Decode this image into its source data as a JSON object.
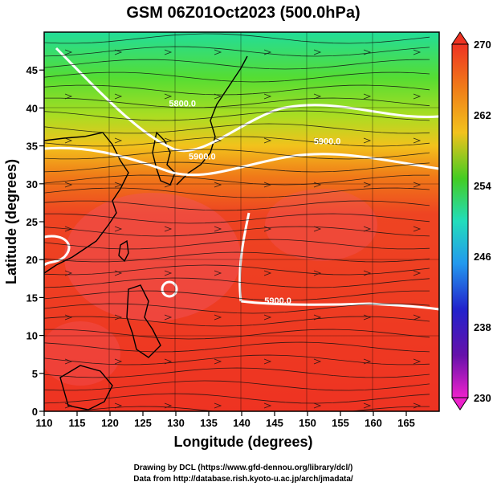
{
  "title": "GSM 06Z01Oct2023 (500.0hPa)",
  "axes": {
    "xlabel": "Longitude (degrees)",
    "ylabel": "Latitude  (degrees)",
    "xlim": [
      110,
      170
    ],
    "ylim": [
      0,
      50
    ],
    "x_ticks": [
      "110",
      "115",
      "120",
      "125",
      "130",
      "135",
      "140",
      "145",
      "150",
      "155",
      "160",
      "165"
    ],
    "y_ticks": [
      "0",
      "5",
      "10",
      "15",
      "20",
      "25",
      "30",
      "35",
      "40",
      "45"
    ]
  },
  "colorbar": {
    "min": 230,
    "max": 270,
    "labels": [
      "270",
      "262",
      "254",
      "246",
      "238",
      "230"
    ],
    "colors": [
      "#ee3322",
      "#f07a18",
      "#f2c21c",
      "#44cc22",
      "#22ddbb",
      "#2299ee",
      "#2222cc",
      "#6611aa",
      "#ee22cc"
    ]
  },
  "contours": {
    "color": "#ffffff",
    "labels": [
      {
        "text": "5900.0",
        "lon": 153,
        "lat": 35.2
      },
      {
        "text": "5900.0",
        "lon": 134,
        "lat": 33.2
      },
      {
        "text": "5800.0",
        "lon": 131,
        "lat": 40.2
      },
      {
        "text": "5900.0",
        "lon": 145.5,
        "lat": 14.2
      }
    ]
  },
  "credits": {
    "line1": "Drawing by DCL (https://www.gfd-dennou.org/library/dcl/)",
    "line2": "Data from http://database.rish.kyoto-u.ac.jp/arch/jmadata/"
  }
}
